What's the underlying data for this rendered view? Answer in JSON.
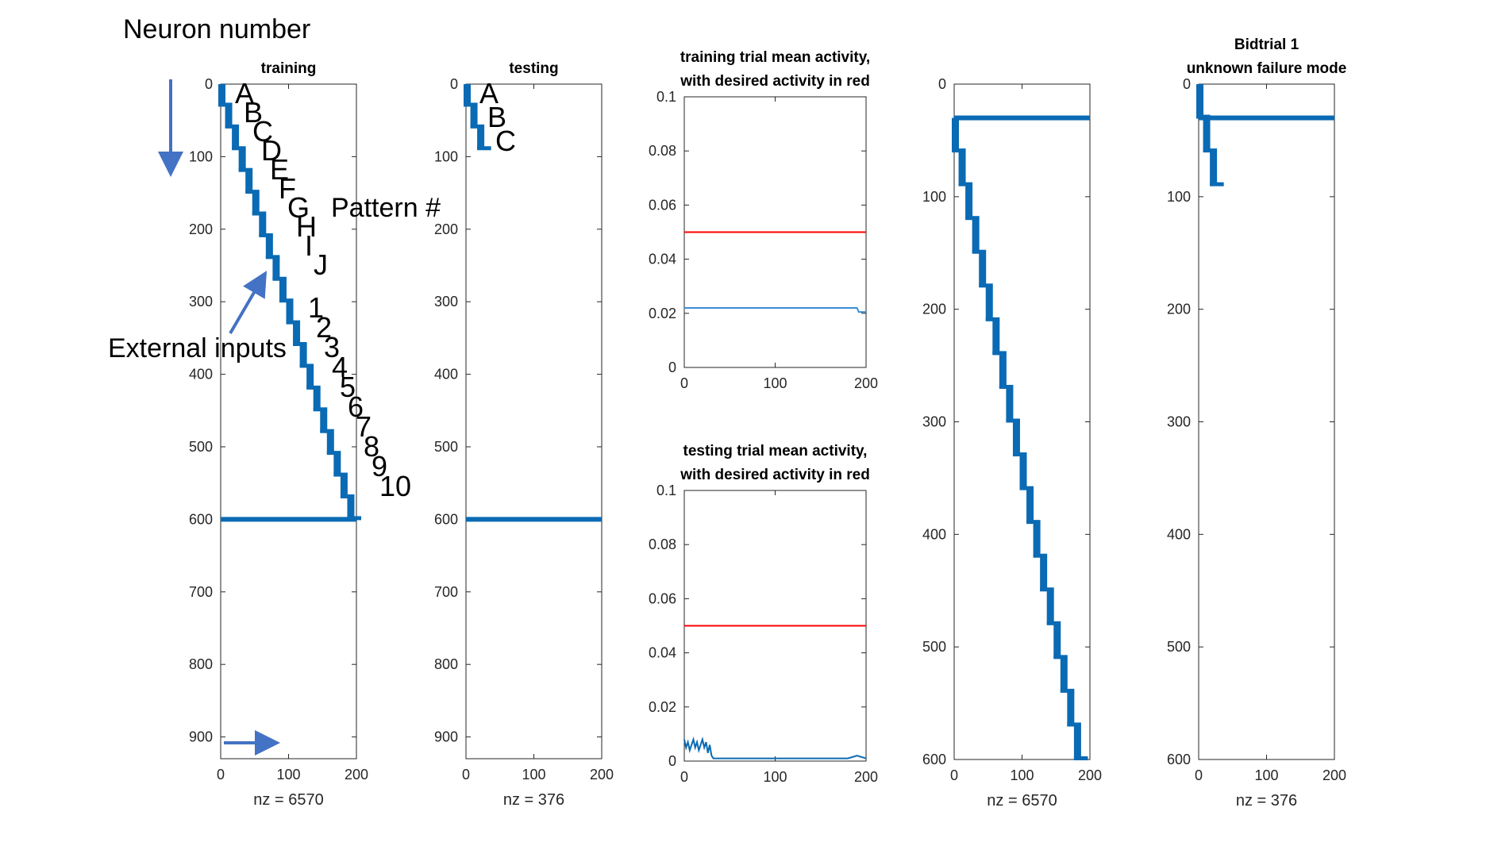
{
  "colors": {
    "series": "#0a6ab4",
    "desired": "#ff0000",
    "training_mean": "#3a8fd6",
    "arrow": "#4472c4",
    "axis": "#262626"
  },
  "annotations": {
    "neuron_number": "Neuron number",
    "pattern_number": "Pattern #",
    "external_inputs": "External inputs",
    "letters": [
      "A",
      "B",
      "C",
      "D",
      "E",
      "F",
      "G",
      "H",
      "I",
      "J"
    ],
    "numbers": [
      "1",
      "2",
      "3",
      "4",
      "5",
      "6",
      "7",
      "8",
      "9",
      "10"
    ],
    "testing_letters": [
      "A",
      "B",
      "C"
    ],
    "bidtrial_letters": []
  },
  "chart_data": [
    {
      "id": "training",
      "type": "scatter",
      "title": [
        "training"
      ],
      "xlabel": "nz = 6570",
      "xlim": [
        0,
        200
      ],
      "ylim": [
        0,
        930
      ],
      "y_reversed": true,
      "xticks": [
        0,
        100,
        200
      ],
      "yticks": [
        0,
        100,
        200,
        300,
        400,
        500,
        600,
        700,
        800,
        900
      ],
      "staircase": {
        "steps": 20,
        "step_neurons": 30,
        "step_time": 10,
        "x_start": 0,
        "y_start": 0
      },
      "input_line": {
        "y": 600,
        "x_range": [
          0,
          200
        ]
      }
    },
    {
      "id": "testing",
      "type": "scatter",
      "title": [
        "testing"
      ],
      "xlabel": "nz = 376",
      "xlim": [
        0,
        200
      ],
      "ylim": [
        0,
        930
      ],
      "y_reversed": true,
      "xticks": [
        0,
        100,
        200
      ],
      "yticks": [
        0,
        100,
        200,
        300,
        400,
        500,
        600,
        700,
        800,
        900
      ],
      "staircase": {
        "steps": 3,
        "step_neurons": 30,
        "step_time": 10,
        "x_start": 0,
        "y_start": 0
      },
      "input_line": {
        "y": 600,
        "x_range": [
          0,
          200
        ]
      }
    },
    {
      "id": "training-mean",
      "type": "line",
      "title": [
        "training trial mean activity,",
        "with desired activity in red"
      ],
      "xlim": [
        0,
        200
      ],
      "ylim": [
        0,
        0.1
      ],
      "xticks": [
        0,
        100,
        200
      ],
      "yticks": [
        "0",
        "0.02",
        "0.04",
        "0.06",
        "0.08",
        "0.1"
      ],
      "series": [
        {
          "x": [
            0,
            190,
            192,
            200
          ],
          "y": [
            0.022,
            0.022,
            0.0205,
            0.0205
          ],
          "color": "#3a8fd6"
        },
        {
          "x": [
            0,
            200
          ],
          "y": [
            0.05,
            0.05
          ],
          "color": "#ff0000"
        }
      ]
    },
    {
      "id": "testing-mean",
      "type": "line",
      "title": [
        "testing trial mean activity,",
        "with desired activity in red"
      ],
      "xlim": [
        0,
        200
      ],
      "ylim": [
        0,
        0.1
      ],
      "xticks": [
        0,
        100,
        200
      ],
      "yticks": [
        "0",
        "0.02",
        "0.04",
        "0.06",
        "0.08",
        "0.1"
      ],
      "series": [
        {
          "x": [
            0,
            2,
            4,
            6,
            8,
            10,
            12,
            14,
            16,
            18,
            20,
            22,
            24,
            26,
            28,
            30,
            32,
            40,
            60,
            80,
            100,
            120,
            140,
            160,
            180,
            190,
            200
          ],
          "y": [
            0.008,
            0.005,
            0.007,
            0.004,
            0.006,
            0.008,
            0.005,
            0.007,
            0.004,
            0.006,
            0.008,
            0.005,
            0.007,
            0.003,
            0.006,
            0.002,
            0.001,
            0.001,
            0.001,
            0.001,
            0.001,
            0.001,
            0.001,
            0.001,
            0.001,
            0.002,
            0.001
          ],
          "color": "#0a6ab4"
        },
        {
          "x": [
            0,
            200
          ],
          "y": [
            0.05,
            0.05
          ],
          "color": "#ff0000"
        }
      ]
    },
    {
      "id": "training-zoom",
      "type": "scatter",
      "title": [],
      "xlabel": "nz = 6570",
      "xlim": [
        0,
        200
      ],
      "ylim": [
        0,
        600
      ],
      "y_reversed": true,
      "xticks": [
        0,
        100,
        200
      ],
      "yticks": [
        0,
        100,
        200,
        300,
        400,
        500,
        600
      ],
      "staircase": {
        "steps": 19,
        "step_neurons": 30,
        "step_time": 10,
        "x_start": 0,
        "y_start": 30
      },
      "input_line": {
        "y": 30,
        "x_range": [
          0,
          200
        ]
      }
    },
    {
      "id": "bidtrial",
      "type": "scatter",
      "title": [
        "Bidtrial 1",
        "unknown failure mode"
      ],
      "xlabel": "nz = 376",
      "xlim": [
        0,
        200
      ],
      "ylim": [
        0,
        600
      ],
      "y_reversed": true,
      "xticks": [
        0,
        100,
        200
      ],
      "yticks": [
        0,
        100,
        200,
        300,
        400,
        500,
        600
      ],
      "staircase": {
        "steps": 3,
        "step_neurons": 30,
        "step_time": 10,
        "x_start": 0,
        "y_start": 0
      },
      "input_line": {
        "y": 30,
        "x_range": [
          0,
          200
        ]
      }
    }
  ]
}
